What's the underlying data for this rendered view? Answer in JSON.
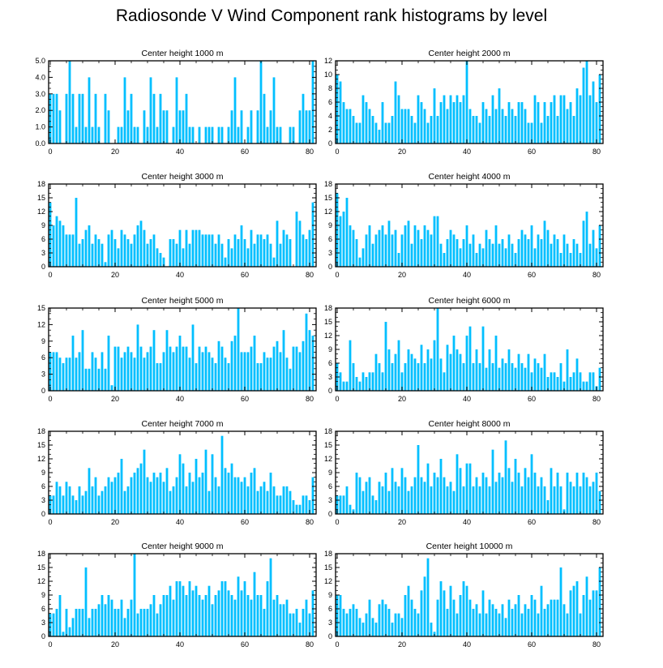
{
  "title": "Radiosonde V Wind Component rank histograms by level",
  "colors": {
    "bar": "#00BFFF",
    "axis": "#000000",
    "background": "#ffffff"
  },
  "chart_data": [
    {
      "type": "bar",
      "title": "Center height 1000 m",
      "ylim": [
        0,
        5
      ],
      "yticks": [
        "0.0",
        "1.0",
        "2.0",
        "3.0",
        "4.0",
        "5.0"
      ],
      "xticks": [
        "0",
        "20",
        "40",
        "60",
        "80"
      ],
      "values": [
        3,
        3,
        3,
        2,
        0,
        3,
        5,
        3,
        1,
        3,
        3,
        1,
        4,
        1,
        3,
        1,
        0,
        3,
        2,
        0,
        0,
        1,
        1,
        4,
        2,
        3,
        1,
        1,
        0,
        2,
        1,
        4,
        3,
        1,
        3,
        2,
        2,
        0,
        1,
        4,
        2,
        2,
        3,
        1,
        1,
        0,
        1,
        0,
        1,
        1,
        1,
        0,
        1,
        1,
        0,
        1,
        2,
        4,
        1,
        2,
        0,
        1,
        2,
        0,
        2,
        5,
        3,
        1,
        2,
        4,
        1,
        1,
        0,
        0,
        1,
        1,
        0,
        2,
        3,
        2,
        2,
        5
      ]
    },
    {
      "type": "bar",
      "title": "Center height 2000 m",
      "ylim": [
        0,
        12
      ],
      "yticks": [
        "0",
        "2",
        "4",
        "6",
        "8",
        "10",
        "12"
      ],
      "xticks": [
        "0",
        "20",
        "40",
        "60",
        "80"
      ],
      "values": [
        10,
        9,
        6,
        5,
        5,
        4,
        3,
        3,
        7,
        6,
        5,
        4,
        3,
        2,
        6,
        3,
        3,
        4,
        9,
        7,
        5,
        5,
        5,
        4,
        3,
        7,
        6,
        5,
        3,
        4,
        8,
        4,
        6,
        7,
        5,
        7,
        6,
        7,
        6,
        7,
        12,
        5,
        4,
        4,
        3,
        6,
        5,
        4,
        7,
        5,
        8,
        5,
        4,
        6,
        5,
        4,
        6,
        6,
        5,
        3,
        3,
        7,
        6,
        3,
        6,
        4,
        6,
        7,
        4,
        7,
        7,
        5,
        6,
        4,
        8,
        7,
        11,
        12,
        7,
        9,
        6,
        10
      ]
    },
    {
      "type": "bar",
      "title": "Center height 3000 m",
      "ylim": [
        0,
        18
      ],
      "yticks": [
        "0",
        "3",
        "6",
        "9",
        "12",
        "15",
        "18"
      ],
      "xticks": [
        "0",
        "20",
        "40",
        "60",
        "80"
      ],
      "values": [
        14,
        9,
        11,
        10,
        9,
        7,
        7,
        7,
        15,
        5,
        6,
        8,
        9,
        5,
        7,
        6,
        5,
        1,
        7,
        8,
        6,
        4,
        8,
        7,
        6,
        5,
        7,
        9,
        10,
        8,
        5,
        6,
        7,
        4,
        3,
        2,
        0,
        6,
        6,
        5,
        8,
        4,
        8,
        5,
        8,
        8,
        8,
        7,
        7,
        7,
        7,
        5,
        7,
        5,
        2,
        6,
        4,
        7,
        6,
        9,
        6,
        4,
        8,
        5,
        7,
        7,
        6,
        7,
        5,
        2,
        10,
        5,
        8,
        7,
        6,
        0,
        12,
        10,
        7,
        6,
        8,
        14
      ]
    },
    {
      "type": "bar",
      "title": "Center height 4000 m",
      "ylim": [
        0,
        18
      ],
      "yticks": [
        "0",
        "3",
        "6",
        "9",
        "12",
        "15",
        "18"
      ],
      "xticks": [
        "0",
        "20",
        "40",
        "60",
        "80"
      ],
      "values": [
        16,
        11,
        12,
        15,
        9,
        8,
        6,
        2,
        4,
        7,
        9,
        5,
        7,
        8,
        9,
        7,
        10,
        7,
        8,
        3,
        7,
        9,
        10,
        5,
        9,
        8,
        6,
        9,
        8,
        7,
        11,
        11,
        5,
        3,
        6,
        8,
        7,
        6,
        4,
        6,
        9,
        5,
        7,
        3,
        5,
        4,
        8,
        6,
        5,
        9,
        5,
        6,
        4,
        7,
        5,
        3,
        6,
        8,
        7,
        6,
        9,
        4,
        7,
        6,
        10,
        8,
        5,
        7,
        6,
        3,
        7,
        5,
        3,
        6,
        5,
        3,
        10,
        12,
        5,
        8,
        4,
        9
      ]
    },
    {
      "type": "bar",
      "title": "Center height 5000 m",
      "ylim": [
        0,
        15
      ],
      "yticks": [
        "0",
        "3",
        "6",
        "9",
        "12",
        "15"
      ],
      "xticks": [
        "0",
        "20",
        "40",
        "60",
        "80"
      ],
      "values": [
        7,
        7,
        7,
        6,
        5,
        6,
        6,
        10,
        6,
        7,
        11,
        4,
        4,
        7,
        6,
        4,
        7,
        4,
        10,
        1,
        8,
        8,
        6,
        7,
        8,
        7,
        6,
        12,
        8,
        6,
        7,
        8,
        11,
        5,
        5,
        7,
        11,
        8,
        7,
        8,
        10,
        8,
        8,
        6,
        12,
        5,
        8,
        7,
        8,
        7,
        6,
        5,
        9,
        8,
        6,
        5,
        9,
        10,
        15,
        7,
        7,
        7,
        8,
        10,
        5,
        5,
        7,
        6,
        6,
        8,
        9,
        7,
        11,
        6,
        4,
        8,
        8,
        7,
        9,
        14,
        11,
        10
      ]
    },
    {
      "type": "bar",
      "title": "Center height 6000 m",
      "ylim": [
        0,
        18
      ],
      "yticks": [
        "0",
        "3",
        "6",
        "9",
        "12",
        "15",
        "18"
      ],
      "xticks": [
        "0",
        "20",
        "40",
        "60",
        "80"
      ],
      "values": [
        6,
        4,
        2,
        2,
        11,
        6,
        3,
        2,
        4,
        3,
        4,
        4,
        8,
        6,
        4,
        15,
        9,
        6,
        8,
        11,
        4,
        6,
        9,
        8,
        7,
        6,
        10,
        6,
        9,
        7,
        11,
        18,
        7,
        4,
        10,
        8,
        12,
        9,
        8,
        6,
        12,
        14,
        6,
        9,
        6,
        14,
        5,
        9,
        6,
        12,
        5,
        7,
        6,
        9,
        6,
        5,
        8,
        6,
        5,
        8,
        4,
        7,
        6,
        5,
        8,
        3,
        4,
        4,
        3,
        6,
        2,
        9,
        3,
        4,
        7,
        4,
        2,
        2,
        4,
        4,
        1,
        5
      ]
    },
    {
      "type": "bar",
      "title": "Center height 7000 m",
      "ylim": [
        0,
        18
      ],
      "yticks": [
        "0",
        "3",
        "6",
        "9",
        "12",
        "15",
        "18"
      ],
      "xticks": [
        "0",
        "20",
        "40",
        "60",
        "80"
      ],
      "values": [
        4,
        4,
        7,
        6,
        4,
        7,
        6,
        4,
        3,
        6,
        4,
        5,
        10,
        6,
        8,
        4,
        5,
        6,
        8,
        7,
        8,
        9,
        12,
        5,
        6,
        8,
        9,
        10,
        11,
        14,
        8,
        7,
        9,
        8,
        9,
        7,
        10,
        5,
        6,
        8,
        13,
        11,
        6,
        9,
        7,
        12,
        8,
        9,
        14,
        5,
        13,
        8,
        6,
        17,
        10,
        9,
        11,
        8,
        8,
        7,
        8,
        6,
        9,
        10,
        5,
        6,
        7,
        5,
        9,
        6,
        4,
        4,
        6,
        6,
        5,
        3,
        2,
        2,
        4,
        4,
        3,
        8
      ]
    },
    {
      "type": "bar",
      "title": "Center height 8000 m",
      "ylim": [
        0,
        18
      ],
      "yticks": [
        "0",
        "3",
        "6",
        "9",
        "12",
        "15",
        "18"
      ],
      "xticks": [
        "0",
        "20",
        "40",
        "60",
        "80"
      ],
      "values": [
        4,
        4,
        4,
        6,
        2,
        1,
        9,
        8,
        5,
        7,
        8,
        4,
        3,
        7,
        6,
        9,
        5,
        10,
        7,
        6,
        10,
        8,
        5,
        6,
        8,
        15,
        8,
        7,
        11,
        6,
        9,
        8,
        12,
        8,
        6,
        7,
        5,
        13,
        10,
        6,
        11,
        11,
        6,
        8,
        6,
        9,
        8,
        6,
        14,
        7,
        9,
        8,
        16,
        10,
        7,
        12,
        9,
        6,
        10,
        8,
        13,
        9,
        6,
        8,
        6,
        3,
        10,
        6,
        9,
        6,
        1,
        9,
        7,
        6,
        9,
        6,
        9,
        8,
        6,
        7,
        9,
        5
      ]
    },
    {
      "type": "bar",
      "title": "Center height 9000 m",
      "ylim": [
        0,
        18
      ],
      "yticks": [
        "0",
        "3",
        "6",
        "9",
        "12",
        "15",
        "18"
      ],
      "xticks": [
        "0",
        "20",
        "40",
        "60",
        "80"
      ],
      "values": [
        5,
        5,
        6,
        9,
        1,
        6,
        2,
        4,
        6,
        6,
        6,
        15,
        4,
        6,
        6,
        7,
        9,
        7,
        9,
        8,
        6,
        6,
        8,
        4,
        6,
        8,
        18,
        5,
        6,
        6,
        6,
        7,
        9,
        5,
        7,
        9,
        9,
        11,
        8,
        12,
        12,
        11,
        9,
        12,
        10,
        11,
        9,
        8,
        9,
        11,
        7,
        9,
        10,
        12,
        12,
        10,
        9,
        8,
        13,
        10,
        12,
        9,
        8,
        14,
        9,
        9,
        6,
        12,
        17,
        8,
        9,
        7,
        7,
        8,
        5,
        5,
        6,
        3,
        6,
        8,
        5,
        10
      ]
    },
    {
      "type": "bar",
      "title": "Center height 10000 m",
      "ylim": [
        0,
        18
      ],
      "yticks": [
        "0",
        "3",
        "6",
        "9",
        "12",
        "15",
        "18"
      ],
      "xticks": [
        "0",
        "20",
        "40",
        "60",
        "80"
      ],
      "values": [
        9,
        9,
        6,
        5,
        6,
        7,
        6,
        4,
        3,
        5,
        8,
        4,
        3,
        7,
        8,
        7,
        6,
        3,
        5,
        5,
        4,
        9,
        11,
        8,
        6,
        5,
        10,
        13,
        17,
        3,
        1,
        8,
        12,
        10,
        6,
        11,
        8,
        5,
        9,
        12,
        11,
        8,
        6,
        7,
        5,
        10,
        5,
        8,
        7,
        6,
        5,
        7,
        4,
        8,
        6,
        7,
        9,
        5,
        7,
        6,
        9,
        8,
        5,
        11,
        6,
        7,
        8,
        8,
        8,
        15,
        7,
        5,
        10,
        11,
        12,
        5,
        9,
        13,
        8,
        10,
        10,
        15
      ]
    }
  ]
}
